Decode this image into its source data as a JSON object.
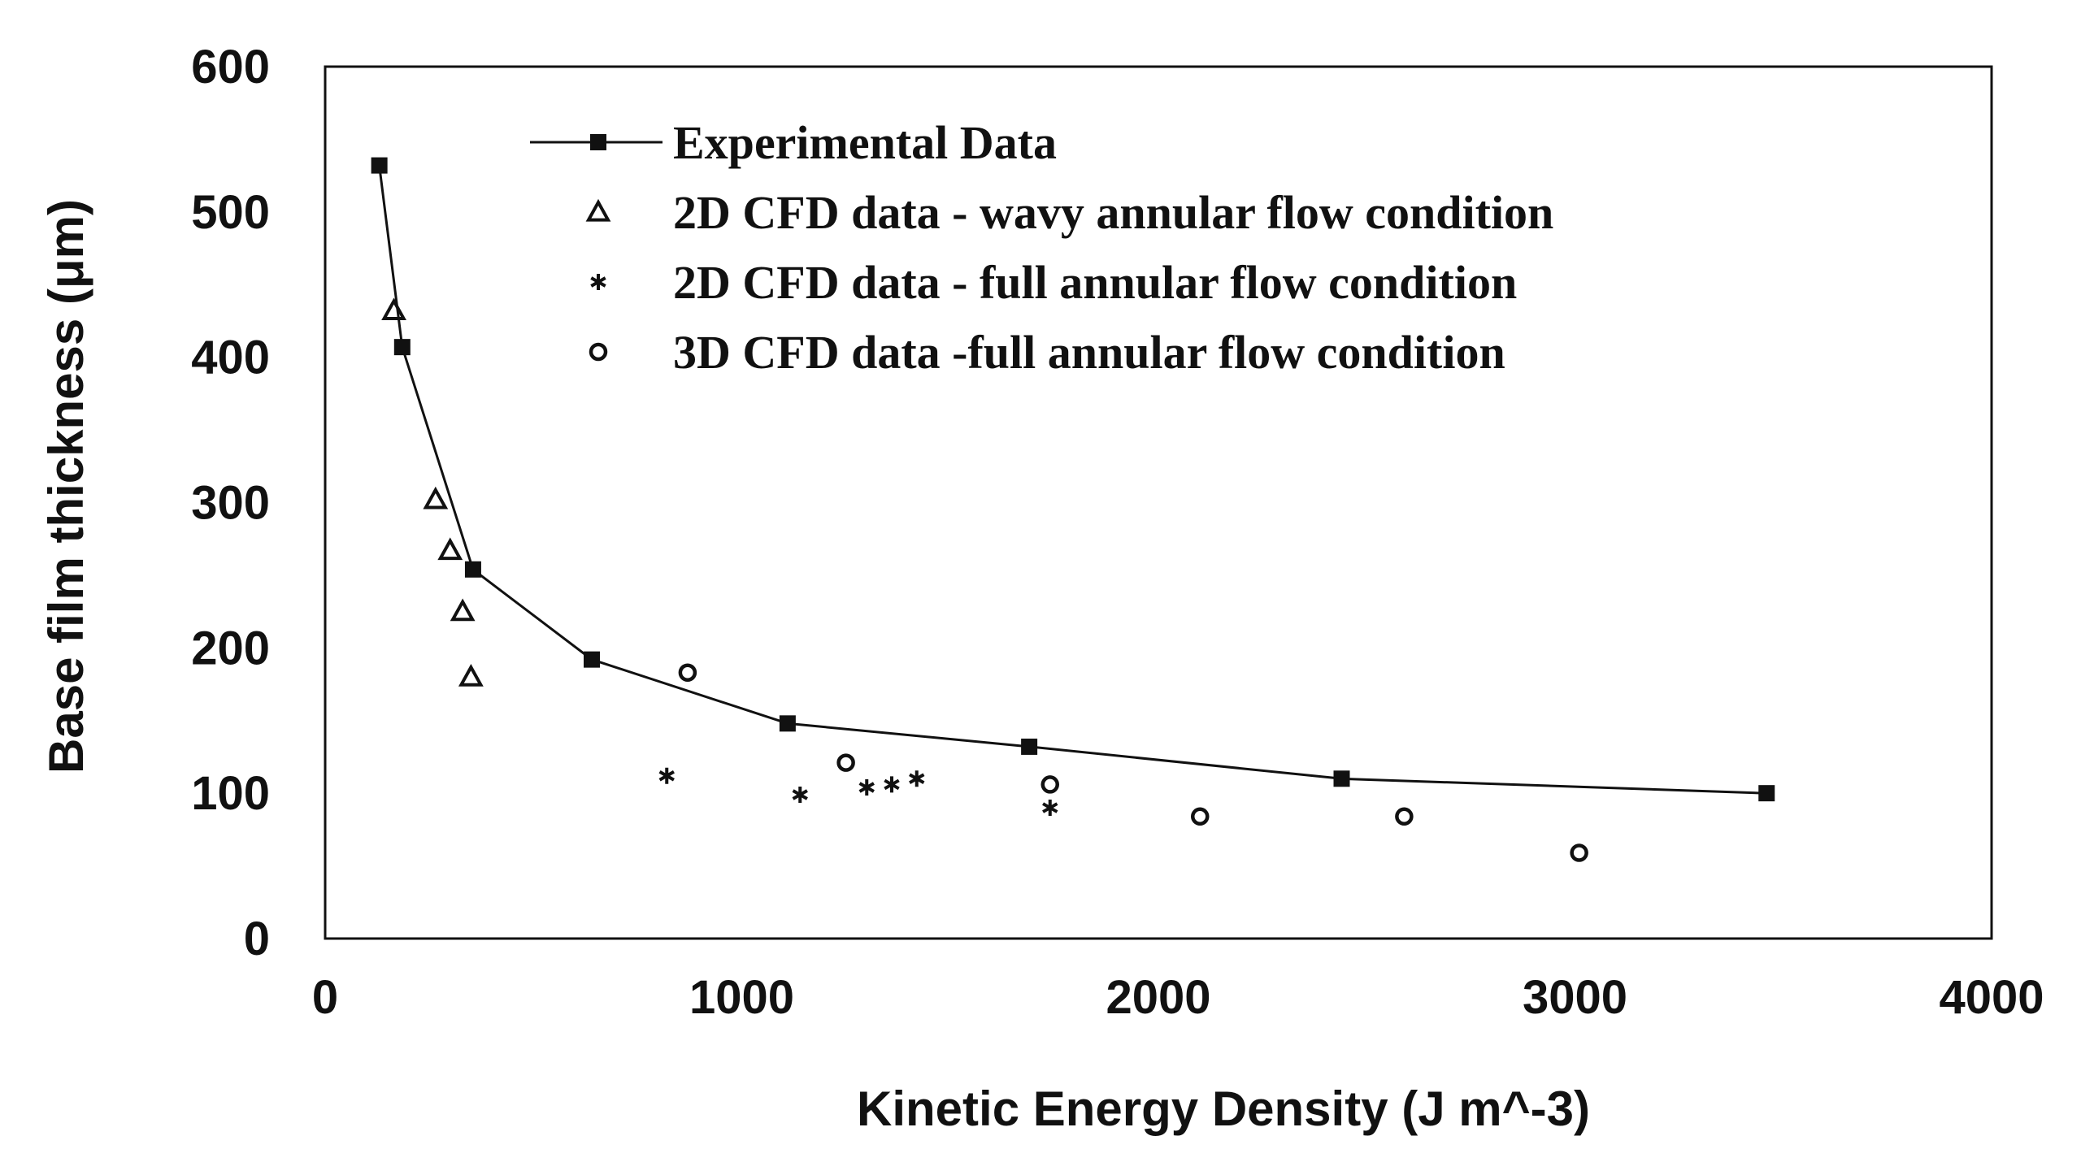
{
  "chart_data": {
    "type": "scatter",
    "title": "",
    "xlabel": "Kinetic Energy Density (J m^-3)",
    "ylabel": "Base film thickness (μm)",
    "xlim": [
      0,
      4000
    ],
    "ylim": [
      0,
      600
    ],
    "xticks": [
      0,
      1000,
      2000,
      3000,
      4000
    ],
    "yticks": [
      0,
      100,
      200,
      300,
      400,
      500,
      600
    ],
    "xtick_labels": [
      "0",
      "1000",
      "2000",
      "3000",
      "4000"
    ],
    "ytick_labels": [
      "0",
      "100",
      "200",
      "300",
      "400",
      "500",
      "600"
    ],
    "grid": false,
    "legend_position": "top-center",
    "series": [
      {
        "name": "Experimental Data",
        "marker": "square",
        "line": true,
        "color": "#111111",
        "x": [
          130,
          185,
          355,
          640,
          1110,
          1690,
          2440,
          3460
        ],
        "y": [
          532,
          407,
          254,
          192,
          148,
          132,
          110,
          100
        ]
      },
      {
        "name": "2D CFD data - wavy annular flow condition",
        "marker": "triangle-open",
        "line": false,
        "color": "#111111",
        "x": [
          165,
          265,
          300,
          330,
          350
        ],
        "y": [
          432,
          302,
          267,
          225,
          180
        ]
      },
      {
        "name": "2D CFD data - full annular flow condition",
        "marker": "asterisk",
        "line": false,
        "color": "#111111",
        "x": [
          820,
          1140,
          1300,
          1360,
          1420,
          1740
        ],
        "y": [
          112,
          99,
          104,
          106,
          110,
          90
        ]
      },
      {
        "name": "3D CFD data -full annular flow condition",
        "marker": "circle-open",
        "line": false,
        "color": "#111111",
        "x": [
          870,
          1250,
          1740,
          2100,
          2590,
          3010
        ],
        "y": [
          183,
          121,
          106,
          84,
          84,
          59
        ]
      }
    ]
  }
}
